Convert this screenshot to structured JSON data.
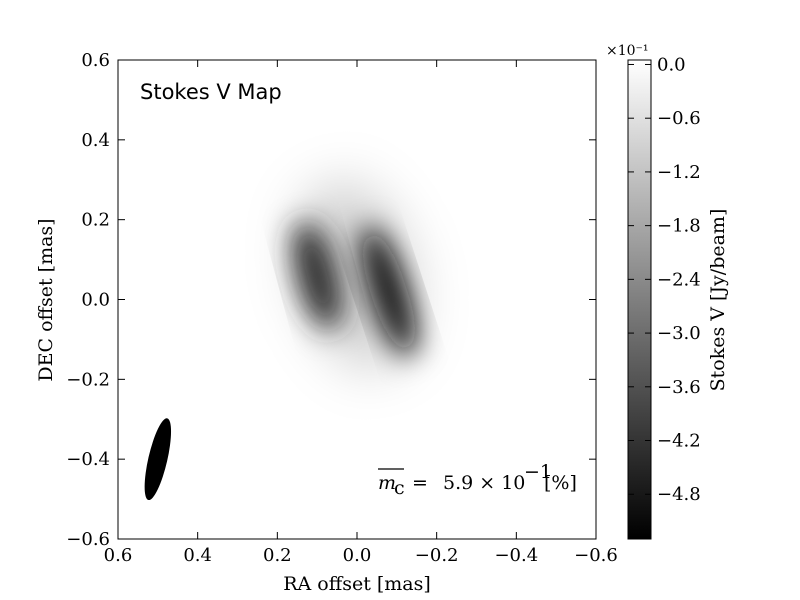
{
  "chart_data": {
    "type": "heatmap",
    "title": "Stokes V Map",
    "xlabel": "RA offset [mas]",
    "ylabel": "DEC offset [mas]",
    "xlim": [
      0.6,
      -0.6
    ],
    "ylim": [
      -0.6,
      0.6
    ],
    "x_ticks": [
      {
        "value": 0.6,
        "label": "0.6"
      },
      {
        "value": 0.4,
        "label": "0.4"
      },
      {
        "value": 0.2,
        "label": "0.2"
      },
      {
        "value": 0.0,
        "label": "0.0"
      },
      {
        "value": -0.2,
        "label": "−0.2"
      },
      {
        "value": -0.4,
        "label": "−0.4"
      },
      {
        "value": -0.6,
        "label": "−0.6"
      }
    ],
    "y_ticks": [
      {
        "value": 0.6,
        "label": "0.6"
      },
      {
        "value": 0.4,
        "label": "0.4"
      },
      {
        "value": 0.2,
        "label": "0.2"
      },
      {
        "value": 0.0,
        "label": "0.0"
      },
      {
        "value": -0.2,
        "label": "−0.2"
      },
      {
        "value": -0.4,
        "label": "−0.4"
      },
      {
        "value": -0.6,
        "label": "−0.6"
      }
    ],
    "colormap": "gray",
    "colorbar": {
      "label": "Stokes V [Jy/beam]",
      "exponent_label": "×10⁻¹",
      "range": [
        -5.3,
        0.05
      ],
      "ticks": [
        {
          "value": 0.0,
          "label": "0.0"
        },
        {
          "value": -0.6,
          "label": "−0.6"
        },
        {
          "value": -1.2,
          "label": "−1.2"
        },
        {
          "value": -1.8,
          "label": "−1.8"
        },
        {
          "value": -2.4,
          "label": "−2.4"
        },
        {
          "value": -3.0,
          "label": "−3.0"
        },
        {
          "value": -3.6,
          "label": "−3.6"
        },
        {
          "value": -4.2,
          "label": "−4.2"
        },
        {
          "value": -4.8,
          "label": "−4.8"
        }
      ]
    },
    "components": [
      {
        "name": "east-lobe",
        "x": 0.1,
        "y": 0.06,
        "sx": 0.05,
        "sy": 0.14,
        "angle_deg": -15,
        "value": -4.4
      },
      {
        "name": "west-lobe",
        "x": -0.08,
        "y": 0.02,
        "sx": 0.045,
        "sy": 0.17,
        "angle_deg": -18,
        "value": -5.0
      },
      {
        "name": "halo",
        "x": 0.0,
        "y": 0.06,
        "sx": 0.14,
        "sy": 0.24,
        "angle_deg": -15,
        "value": -1.0
      }
    ],
    "beam": {
      "x": 0.5,
      "y": -0.4,
      "major": 0.21,
      "minor": 0.034,
      "pa_deg": -13
    },
    "annotation": {
      "text_main": "5.9 × 10",
      "exponent": "−1",
      "unit": "[%]",
      "symbol": "m",
      "subscript": "c"
    }
  }
}
